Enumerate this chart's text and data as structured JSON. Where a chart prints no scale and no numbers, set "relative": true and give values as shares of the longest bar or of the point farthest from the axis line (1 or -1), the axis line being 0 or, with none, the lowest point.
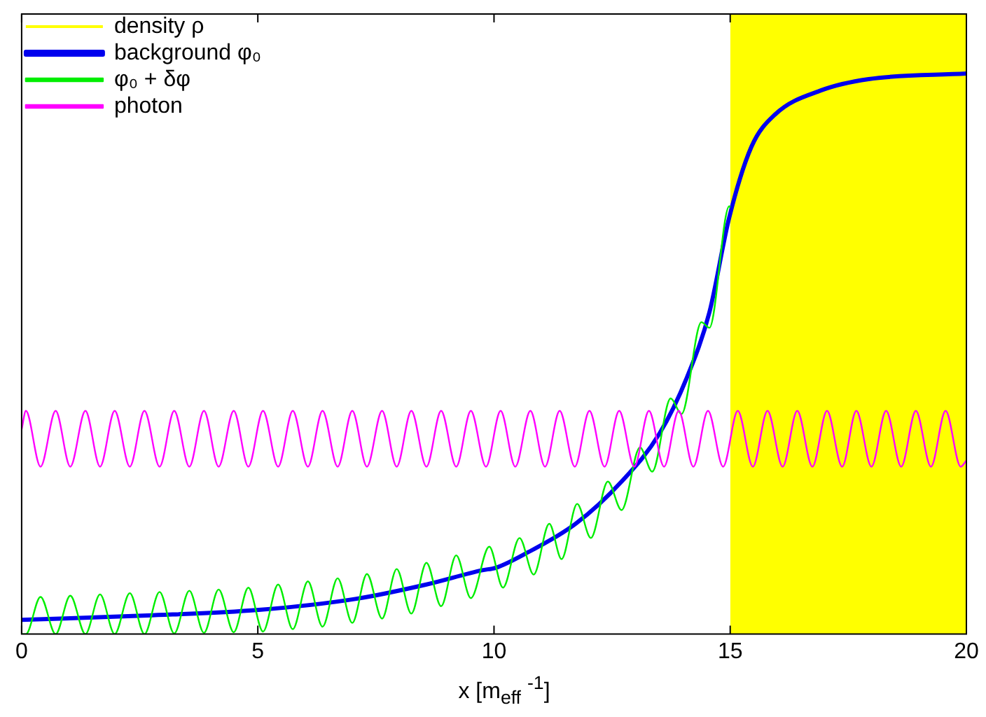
{
  "chart_data": {
    "type": "line",
    "relative": true,
    "xlim": [
      0,
      20
    ],
    "xticks": [
      0,
      5,
      10,
      15,
      20
    ],
    "xlabel": "x [m$_{eff}$ $^{-1}$]",
    "legend": "top left",
    "grid": false,
    "series": [
      {
        "name": "density ρ",
        "type": "area",
        "color": "#ffff00",
        "x": [
          15,
          20
        ],
        "values": [
          1,
          1
        ]
      },
      {
        "name": "background φ₀",
        "color": "#0000ee",
        "x": [
          0,
          2.66,
          5.02,
          7.09,
          8.57,
          9.75,
          10.04,
          10.72,
          11.73,
          12.7,
          13.5,
          14.09,
          14.56,
          14.98,
          15.45,
          15.95,
          16.93,
          17.93,
          20
        ],
        "values": [
          0.023,
          0.03,
          0.039,
          0.057,
          0.08,
          0.103,
          0.107,
          0.132,
          0.178,
          0.246,
          0.323,
          0.415,
          0.519,
          0.672,
          0.786,
          0.838,
          0.877,
          0.895,
          0.904
        ]
      },
      {
        "name": "φ₀ + δφ",
        "color": "#00ee00",
        "x": [
          0,
          0.09,
          0.4,
          0.72,
          1.03,
          1.35,
          1.66,
          1.97,
          2.29,
          2.6,
          2.92,
          3.23,
          3.55,
          3.86,
          4.17,
          4.49,
          4.8,
          5.11,
          5.43,
          5.74,
          6.06,
          6.37,
          6.69,
          7.0,
          7.31,
          7.63,
          7.94,
          8.25,
          8.57,
          8.88,
          9.2,
          9.51,
          9.9,
          10.19,
          10.54,
          10.84,
          11.17,
          11.43,
          11.76,
          12.05,
          12.41,
          12.7,
          13.09,
          13.35,
          13.74,
          13.97,
          14.39,
          14.56,
          14.98,
          15.0
        ],
        "values": [
          0.0,
          0.0,
          0.06,
          0.0,
          0.062,
          0.0,
          0.064,
          0.0,
          0.066,
          0.0,
          0.068,
          0.001,
          0.07,
          0.002,
          0.072,
          0.003,
          0.075,
          0.004,
          0.08,
          0.008,
          0.085,
          0.012,
          0.09,
          0.018,
          0.097,
          0.025,
          0.105,
          0.033,
          0.115,
          0.045,
          0.127,
          0.058,
          0.141,
          0.075,
          0.155,
          0.096,
          0.178,
          0.121,
          0.21,
          0.155,
          0.246,
          0.2,
          0.301,
          0.262,
          0.38,
          0.355,
          0.503,
          0.494,
          0.69,
          0.688
        ]
      },
      {
        "name": "photon",
        "color": "#ff00ff",
        "x": [
          0,
          0.09,
          0.4,
          0.72,
          1.03,
          1.35,
          1.66,
          1.97,
          2.29,
          2.6,
          2.92,
          3.23,
          3.55,
          3.86,
          4.17,
          4.49,
          4.8,
          5.11,
          5.43,
          5.74,
          6.06,
          6.37,
          6.69,
          7.0,
          7.31,
          7.63,
          7.94,
          8.25,
          8.57,
          8.88,
          9.2,
          9.51,
          9.83,
          10.14,
          10.45,
          10.77,
          11.08,
          11.39,
          11.71,
          12.02,
          12.34,
          12.65,
          12.97,
          13.28,
          13.6,
          13.91,
          14.22,
          14.53,
          14.85,
          15.16,
          15.48,
          15.79,
          16.11,
          16.42,
          16.74,
          17.05,
          17.37,
          17.67,
          17.99,
          18.3,
          18.62,
          18.93,
          19.25,
          19.56,
          19.88,
          20
        ],
        "values": [
          0.33,
          0.36,
          0.27,
          0.36,
          0.27,
          0.36,
          0.27,
          0.36,
          0.27,
          0.36,
          0.27,
          0.36,
          0.27,
          0.36,
          0.27,
          0.36,
          0.27,
          0.36,
          0.27,
          0.36,
          0.27,
          0.36,
          0.27,
          0.36,
          0.27,
          0.36,
          0.27,
          0.36,
          0.27,
          0.36,
          0.27,
          0.36,
          0.27,
          0.36,
          0.27,
          0.36,
          0.27,
          0.36,
          0.27,
          0.36,
          0.27,
          0.36,
          0.27,
          0.36,
          0.27,
          0.36,
          0.27,
          0.36,
          0.27,
          0.36,
          0.27,
          0.36,
          0.27,
          0.36,
          0.27,
          0.36,
          0.27,
          0.36,
          0.27,
          0.36,
          0.27,
          0.36,
          0.27,
          0.36,
          0.27,
          0.28
        ]
      }
    ]
  }
}
